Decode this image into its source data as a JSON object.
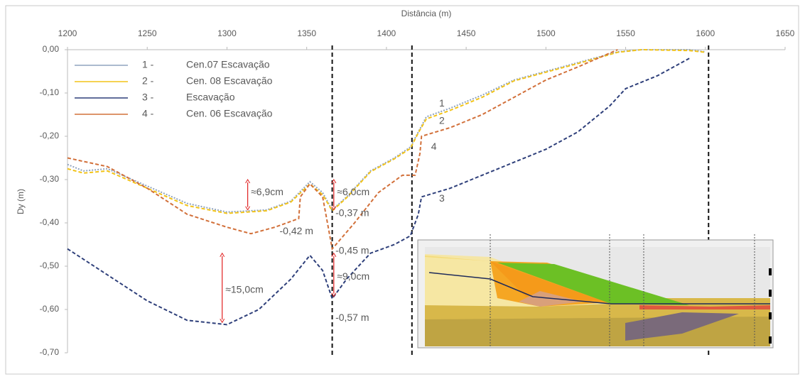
{
  "chart_data": {
    "type": "line",
    "x_label": "Distância (m)",
    "y_label": "Dy (m)",
    "xlim": [
      1200,
      1650
    ],
    "xticks": [
      1200,
      1250,
      1300,
      1350,
      1400,
      1450,
      1500,
      1550,
      1600,
      1650
    ],
    "ylim": [
      -0.7,
      0
    ],
    "yticks": [
      {
        "value": 0,
        "label": "0,00"
      },
      {
        "value": -0.1,
        "label": "-0,10"
      },
      {
        "value": -0.2,
        "label": "-0,20"
      },
      {
        "value": -0.3,
        "label": "-0,30"
      },
      {
        "value": -0.4,
        "label": "-0,40"
      },
      {
        "value": -0.5,
        "label": "-0,50"
      },
      {
        "value": -0.6,
        "label": "-0,60"
      },
      {
        "value": -0.7,
        "label": "-0,70"
      }
    ],
    "series": [
      {
        "label": "1 -",
        "name": "Cen.07 Escavação",
        "color": "#8fa3bf",
        "line_style": "dotted",
        "x": [
          1200,
          1210,
          1225,
          1250,
          1275,
          1300,
          1325,
          1340,
          1352,
          1360,
          1366,
          1375,
          1390,
          1405,
          1415,
          1420,
          1425,
          1440,
          1460,
          1480,
          1500,
          1520,
          1545,
          1560,
          1590,
          1600
        ],
        "values": [
          -0.265,
          -0.28,
          -0.275,
          -0.315,
          -0.355,
          -0.375,
          -0.37,
          -0.35,
          -0.305,
          -0.33,
          -0.37,
          -0.34,
          -0.28,
          -0.25,
          -0.225,
          -0.19,
          -0.155,
          -0.135,
          -0.105,
          -0.07,
          -0.05,
          -0.03,
          -0.005,
          0,
          0,
          -0.005
        ]
      },
      {
        "label": "2 -",
        "name": "Cen. 08 Escavação",
        "color": "#f2c318",
        "line_style": "dashed",
        "x": [
          1200,
          1210,
          1225,
          1250,
          1275,
          1300,
          1325,
          1340,
          1352,
          1360,
          1366,
          1375,
          1390,
          1405,
          1415,
          1420,
          1425,
          1440,
          1460,
          1480,
          1500,
          1520,
          1545,
          1560,
          1590,
          1600
        ],
        "values": [
          -0.275,
          -0.285,
          -0.28,
          -0.32,
          -0.36,
          -0.378,
          -0.372,
          -0.352,
          -0.31,
          -0.335,
          -0.372,
          -0.342,
          -0.282,
          -0.252,
          -0.228,
          -0.192,
          -0.16,
          -0.14,
          -0.11,
          -0.072,
          -0.052,
          -0.032,
          -0.006,
          0,
          -0.002,
          -0.006
        ]
      },
      {
        "label": "3 -",
        "name": "Escavação",
        "color": "#2e3f7a",
        "line_style": "dashed",
        "x": [
          1200,
          1225,
          1250,
          1275,
          1300,
          1320,
          1340,
          1352,
          1360,
          1366,
          1375,
          1390,
          1405,
          1415,
          1420,
          1422,
          1440,
          1460,
          1480,
          1500,
          1520,
          1540,
          1550,
          1570,
          1590
        ],
        "values": [
          -0.46,
          -0.52,
          -0.58,
          -0.625,
          -0.635,
          -0.6,
          -0.53,
          -0.475,
          -0.51,
          -0.575,
          -0.53,
          -0.47,
          -0.45,
          -0.43,
          -0.38,
          -0.34,
          -0.32,
          -0.29,
          -0.26,
          -0.23,
          -0.19,
          -0.13,
          -0.09,
          -0.06,
          -0.02
        ]
      },
      {
        "label": "4 -",
        "name": "Cen. 06  Escavação",
        "color": "#d2703a",
        "line_style": "dashed",
        "x": [
          1200,
          1225,
          1250,
          1275,
          1300,
          1315,
          1330,
          1345,
          1346,
          1352,
          1360,
          1366,
          1380,
          1395,
          1410,
          1418,
          1421,
          1422,
          1440,
          1460,
          1480,
          1500,
          1520,
          1545
        ],
        "values": [
          -0.25,
          -0.27,
          -0.32,
          -0.38,
          -0.41,
          -0.425,
          -0.41,
          -0.39,
          -0.34,
          -0.31,
          -0.34,
          -0.46,
          -0.4,
          -0.33,
          -0.29,
          -0.29,
          -0.24,
          -0.2,
          -0.18,
          -0.15,
          -0.11,
          -0.07,
          -0.04,
          0
        ]
      }
    ],
    "vlines": [
      1366,
      1416,
      1602
    ],
    "arrows": [
      {
        "x": 1313,
        "y1": -0.3,
        "y2": -0.37
      },
      {
        "x": 1367,
        "y1": -0.3,
        "y2": -0.37
      },
      {
        "x": 1367,
        "y1": -0.47,
        "y2": -0.57
      },
      {
        "x": 1297,
        "y1": -0.47,
        "y2": -0.63
      }
    ],
    "annotations": [
      {
        "text": "≈6,9cm",
        "x": 1315,
        "y": -0.33,
        "color": "#e02020"
      },
      {
        "text": "≈6,0cm",
        "x": 1369,
        "y": -0.33,
        "color": "#e02020"
      },
      {
        "text": "-0,37 m",
        "x": 1368,
        "y": -0.378,
        "color": "#000000"
      },
      {
        "text": "-0,42 m",
        "x": 1333,
        "y": -0.42,
        "color": "#000000"
      },
      {
        "text": "-0,45 m",
        "x": 1368,
        "y": -0.465,
        "color": "#000000"
      },
      {
        "text": "≈9,0cm",
        "x": 1369,
        "y": -0.525,
        "color": "#e02020"
      },
      {
        "text": "≈15,0cm",
        "x": 1299,
        "y": -0.555,
        "color": "#e02020"
      },
      {
        "text": "-0,57 m",
        "x": 1368,
        "y": -0.62,
        "color": "#000000"
      },
      {
        "text": "1",
        "x": 1433,
        "y": -0.125,
        "color": "#e02020"
      },
      {
        "text": "2",
        "x": 1433,
        "y": -0.165,
        "color": "#e02020"
      },
      {
        "text": "4",
        "x": 1428,
        "y": -0.225,
        "color": "#e02020"
      },
      {
        "text": "3",
        "x": 1433,
        "y": -0.345,
        "color": "#e02020"
      }
    ]
  }
}
